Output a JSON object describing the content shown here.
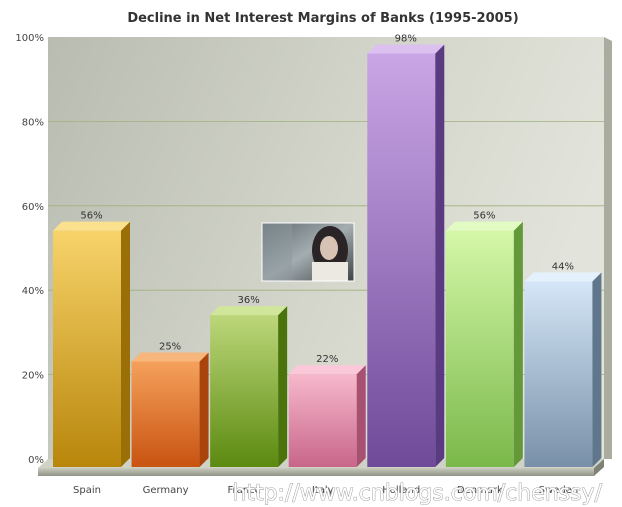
{
  "chart_data": {
    "type": "bar",
    "title": "Decline in Net Interest Margins of Banks (1995-2005)",
    "xlabel": "",
    "ylabel": "",
    "categories": [
      "Spain",
      "Germany",
      "France",
      "Italy",
      "Holland",
      "Denmark",
      "Sweden"
    ],
    "values": [
      56,
      25,
      36,
      22,
      98,
      56,
      44
    ],
    "value_suffix": "%",
    "ylim": [
      0,
      100
    ],
    "yticks": [
      "0%",
      "20%",
      "40%",
      "60%",
      "80%",
      "100%"
    ],
    "grid": true,
    "style": "3d",
    "colors": [
      {
        "light": "#f7d36a",
        "dark": "#b8860b",
        "side": "#9a6f08",
        "top": "#fbe08e"
      },
      {
        "light": "#f4a15c",
        "dark": "#c95310",
        "side": "#a8440c",
        "top": "#f7b77c"
      },
      {
        "light": "#bcd77a",
        "dark": "#5b8a10",
        "side": "#4a730c",
        "top": "#d0e69a"
      },
      {
        "light": "#f7b8cc",
        "dark": "#c8668a",
        "side": "#a85072",
        "top": "#fac8d8"
      },
      {
        "light": "#caa6e6",
        "dark": "#6e4a99",
        "side": "#5a3a80",
        "top": "#dcc0f0"
      },
      {
        "light": "#d4f7a8",
        "dark": "#7ab84a",
        "side": "#64993a",
        "top": "#e2fbc2"
      },
      {
        "light": "#d4e6f7",
        "dark": "#7890a8",
        "side": "#60768c",
        "top": "#e4f0fb"
      }
    ]
  },
  "watermark": "http://www.cnblogs.com/chenssy/"
}
